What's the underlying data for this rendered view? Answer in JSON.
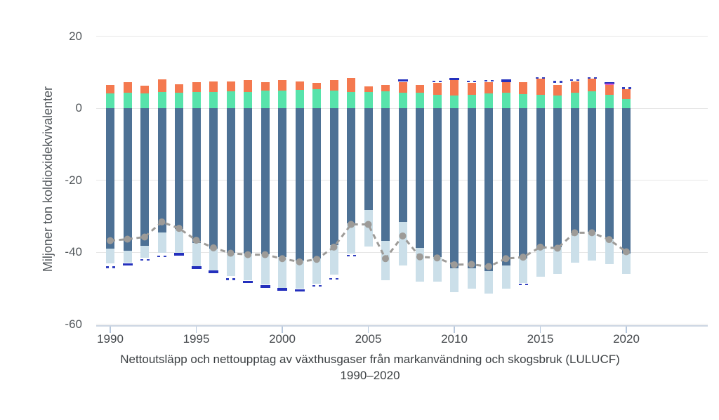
{
  "chart_data": {
    "type": "bar",
    "subtype": "stacked positive/negative bars with dashed net-total line",
    "title": "Nettoutsläpp och nettoupptag av växthusgaser från markanvändning och skogsbruk (LULUCF)",
    "subtitle": "1990–2020",
    "ylabel": "Miljoner ton koldioxidekvivalenter",
    "xlabel": "",
    "ylim": [
      -60,
      20
    ],
    "yticks": [
      "20",
      "0",
      "-20",
      "-40",
      "-60"
    ],
    "xticks": [
      "1990",
      "1995",
      "2000",
      "2005",
      "2010",
      "2015",
      "2020"
    ],
    "grid": "horizontal",
    "legend": "none visible",
    "years": [
      1990,
      1991,
      1992,
      1993,
      1994,
      1995,
      1996,
      1997,
      1998,
      1999,
      2000,
      2001,
      2002,
      2003,
      2004,
      2005,
      2006,
      2007,
      2008,
      2009,
      2010,
      2011,
      2012,
      2013,
      2014,
      2015,
      2016,
      2017,
      2018,
      2019,
      2020
    ],
    "series": {
      "green_positive_segment": {
        "color": "#57e3ab",
        "values": [
          4.1,
          4.2,
          4.1,
          4.4,
          4.3,
          4.4,
          4.5,
          4.7,
          4.5,
          4.8,
          4.8,
          5.0,
          5.2,
          4.8,
          4.4,
          4.4,
          4.7,
          4.2,
          4.2,
          3.7,
          3.5,
          3.7,
          4.1,
          4.2,
          3.9,
          3.7,
          3.5,
          4.2,
          4.7,
          3.7,
          2.6
        ]
      },
      "orange_positive_segment": {
        "color": "#f4794f",
        "values": [
          2.4,
          3.0,
          2.2,
          3.6,
          2.4,
          2.9,
          3.0,
          2.8,
          3.3,
          2.5,
          3.0,
          2.5,
          1.8,
          3.0,
          4.0,
          1.6,
          1.8,
          3.1,
          2.3,
          3.3,
          4.3,
          3.3,
          3.1,
          3.0,
          3.3,
          4.4,
          3.0,
          3.3,
          3.4,
          2.8,
          2.6
        ]
      },
      "dark_blue_negative_to": {
        "color": "#4d7195",
        "values": [
          -39.0,
          -39.7,
          -38.3,
          -34.6,
          -33.5,
          -37.5,
          -39.1,
          -40.1,
          -40.4,
          -40.5,
          -41.4,
          -42.4,
          -41.8,
          -38.1,
          -32.0,
          -28.3,
          -36.8,
          -31.6,
          -38.8,
          -41.4,
          -44.4,
          -44.5,
          -45.3,
          -43.7,
          -41.8,
          -39.1,
          -38.6,
          -34.8,
          -34.4,
          -36.3,
          -40.4
        ]
      },
      "light_blue_negative_to": {
        "color": "#cbdfe9",
        "values_to": [
          -43.1,
          -42.9,
          -41.6,
          -40.2,
          -40.2,
          -43.9,
          -45.2,
          -46.6,
          -47.8,
          -49.0,
          -49.9,
          -50.2,
          -48.8,
          -46.3,
          -40.4,
          -38.4,
          -47.9,
          -43.7,
          -48.2,
          -48.1,
          -51.2,
          -50.2,
          -51.6,
          -50.1,
          -48.6,
          -46.9,
          -46.0,
          -43.0,
          -42.4,
          -43.3,
          -46.0
        ]
      },
      "navy_tick_bottom": {
        "color": "#2430bd",
        "marks": [
          {
            "v": -44.2,
            "style": "dots"
          },
          {
            "v": -43.4,
            "style": "solid"
          },
          {
            "v": -42.1,
            "style": "dots"
          },
          {
            "v": -41.2,
            "style": "dots"
          },
          {
            "v": -40.6,
            "style": "solid"
          },
          {
            "v": -44.3,
            "style": "solid"
          },
          {
            "v": -45.5,
            "style": "solid"
          },
          {
            "v": -47.5,
            "style": "dots"
          },
          {
            "v": -48.3,
            "style": "solid"
          },
          {
            "v": -49.6,
            "style": "solid"
          },
          {
            "v": -50.3,
            "style": "solid"
          },
          {
            "v": -50.6,
            "style": "solid"
          },
          {
            "v": -49.4,
            "style": "dots"
          },
          {
            "v": -47.4,
            "style": "dots"
          },
          {
            "v": -41.0,
            "style": "dots"
          },
          null,
          null,
          null,
          null,
          null,
          null,
          null,
          null,
          null,
          {
            "v": -49.0,
            "style": "dots"
          },
          null,
          null,
          null,
          null,
          null,
          null
        ]
      },
      "navy_tick_top": {
        "color": "#2430bd",
        "marks": [
          null,
          null,
          null,
          null,
          null,
          null,
          null,
          null,
          null,
          null,
          null,
          null,
          null,
          null,
          null,
          null,
          null,
          {
            "v": 7.7,
            "style": "solid"
          },
          null,
          {
            "v": 7.4,
            "style": "dots"
          },
          {
            "v": 8.1,
            "style": "solid"
          },
          {
            "v": 7.4,
            "style": "dots"
          },
          {
            "v": 7.6,
            "style": "dots"
          },
          {
            "v": 7.6,
            "style": "solid"
          },
          null,
          {
            "v": 8.4,
            "style": "dots"
          },
          {
            "v": 7.3,
            "style": "dots"
          },
          {
            "v": 7.8,
            "style": "dots"
          },
          {
            "v": 8.4,
            "style": "dots"
          },
          {
            "v": 6.9,
            "style": "solid"
          },
          {
            "v": 5.6,
            "style": "dots"
          }
        ]
      },
      "magenta_tick": {
        "color": "#d957c8",
        "marks": [
          null,
          null,
          null,
          null,
          null,
          null,
          null,
          null,
          null,
          null,
          null,
          null,
          null,
          null,
          null,
          null,
          null,
          null,
          null,
          null,
          null,
          null,
          null,
          null,
          null,
          null,
          null,
          null,
          null,
          {
            "v": 6.6
          },
          null
        ]
      },
      "net_total_line": {
        "color": "#9d9b98",
        "style": "dashed line with round gray markers",
        "values": [
          -36.8,
          -36.4,
          -35.8,
          -31.6,
          -33.4,
          -36.7,
          -38.8,
          -40.3,
          -40.7,
          -40.7,
          -41.8,
          -42.7,
          -42.0,
          -38.6,
          -32.3,
          -32.3,
          -41.8,
          -35.5,
          -41.3,
          -41.6,
          -43.5,
          -43.4,
          -44.0,
          -41.8,
          -41.4,
          -38.6,
          -38.9,
          -34.6,
          -34.6,
          -36.5,
          -39.9
        ]
      }
    }
  }
}
